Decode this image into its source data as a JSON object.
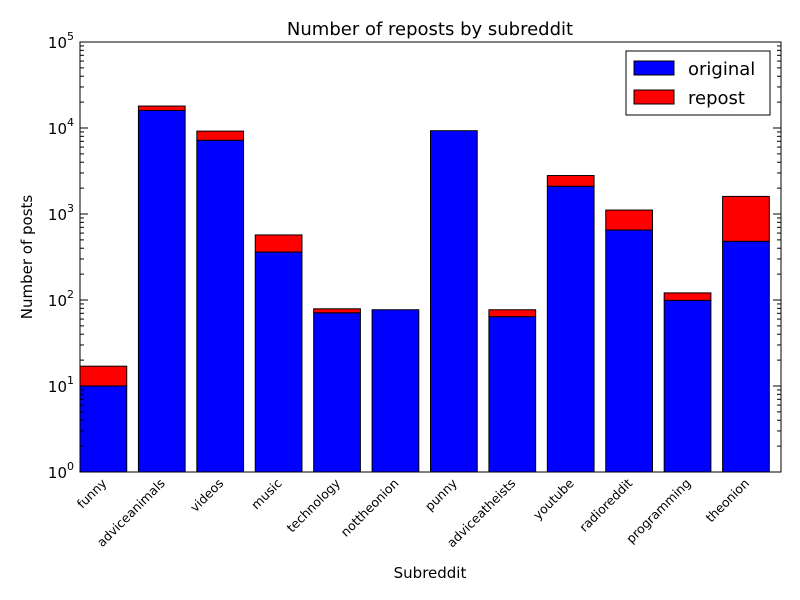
{
  "chart_data": {
    "type": "bar",
    "stacked": true,
    "title": "Number of reposts by subreddit",
    "xlabel": "Subreddit",
    "ylabel": "Number of posts",
    "yscale": "log",
    "ylim": [
      1,
      100000
    ],
    "yticks": [
      {
        "value": 1,
        "base": "10",
        "exp": "0"
      },
      {
        "value": 10,
        "base": "10",
        "exp": "1"
      },
      {
        "value": 100,
        "base": "10",
        "exp": "2"
      },
      {
        "value": 1000,
        "base": "10",
        "exp": "3"
      },
      {
        "value": 10000,
        "base": "10",
        "exp": "4"
      },
      {
        "value": 100000,
        "base": "10",
        "exp": "5"
      }
    ],
    "categories": [
      "funny",
      "adviceanimals",
      "videos",
      "music",
      "technology",
      "nottheonion",
      "punny",
      "adviceatheists",
      "youtube",
      "radioreddit",
      "programming",
      "theonion"
    ],
    "series": [
      {
        "name": "original",
        "color": "#0000ff",
        "values": [
          9,
          16000,
          7200,
          360,
          70,
          76,
          9300,
          63,
          2100,
          650,
          98,
          480
        ]
      },
      {
        "name": "repost",
        "color": "#ff0000",
        "values": [
          7,
          2000,
          2000,
          210,
          8,
          0,
          0,
          13,
          700,
          460,
          22,
          1120
        ]
      }
    ],
    "legend_position": "top-right",
    "grid": false
  }
}
